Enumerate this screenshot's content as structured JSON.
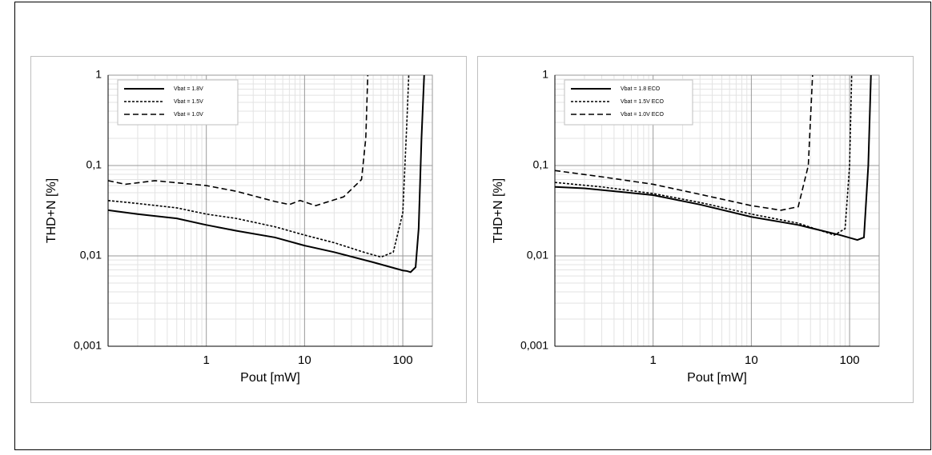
{
  "chart_data": [
    {
      "type": "line",
      "x_label": "Pout [mW]",
      "y_label": "THD+N [%]",
      "log_x": true,
      "log_y": true,
      "grid": true,
      "legend": "top-left",
      "xlim": [
        0.1,
        200
      ],
      "ylim": [
        0.001,
        1
      ],
      "xticks": [
        1,
        10,
        100
      ],
      "yticks": [
        {
          "value": 0.001,
          "label": "0,001"
        },
        {
          "value": 0.01,
          "label": "0,01"
        },
        {
          "value": 0.1,
          "label": "0,1"
        },
        1
      ],
      "series": [
        {
          "name": "Vbat = 1.8V",
          "color": "#000000",
          "dash": "solid",
          "x": [
            0.1,
            0.2,
            0.5,
            1,
            2,
            5,
            10,
            20,
            50,
            100,
            110,
            120,
            135,
            145,
            155,
            165
          ],
          "values": [
            0.032,
            0.029,
            0.026,
            0.022,
            0.019,
            0.016,
            0.013,
            0.011,
            0.0085,
            0.0069,
            0.0068,
            0.0066,
            0.0075,
            0.02,
            0.2,
            1
          ]
        },
        {
          "name": "Vbat = 1.5V",
          "color": "#000000",
          "dash": "dotted",
          "x": [
            0.1,
            0.2,
            0.5,
            1,
            2,
            5,
            10,
            20,
            40,
            60,
            80,
            100,
            110,
            115
          ],
          "values": [
            0.041,
            0.038,
            0.034,
            0.029,
            0.026,
            0.021,
            0.017,
            0.014,
            0.011,
            0.0097,
            0.011,
            0.03,
            0.3,
            1
          ]
        },
        {
          "name": "Vbat = 1.0V",
          "color": "#000000",
          "dash": "dashed",
          "x": [
            0.1,
            0.15,
            0.3,
            1,
            2,
            5,
            7,
            9,
            13,
            25,
            38,
            42,
            44
          ],
          "values": [
            0.068,
            0.062,
            0.068,
            0.06,
            0.052,
            0.04,
            0.037,
            0.041,
            0.036,
            0.045,
            0.07,
            0.2,
            1
          ]
        }
      ]
    },
    {
      "type": "line",
      "x_label": "Pout [mW]",
      "y_label": "THD+N [%]",
      "log_x": true,
      "log_y": true,
      "grid": true,
      "legend": "top-left",
      "xlim": [
        0.1,
        200
      ],
      "ylim": [
        0.001,
        1
      ],
      "xticks": [
        1,
        10,
        100
      ],
      "yticks": [
        {
          "value": 0.001,
          "label": "0,001"
        },
        {
          "value": 0.01,
          "label": "0,01"
        },
        {
          "value": 0.1,
          "label": "0,1"
        },
        1
      ],
      "series": [
        {
          "name": "Vbat = 1.8 ECO",
          "color": "#000000",
          "dash": "solid",
          "x": [
            0.1,
            0.2,
            1,
            3,
            10,
            30,
            80,
            120,
            140,
            155,
            165
          ],
          "values": [
            0.058,
            0.056,
            0.047,
            0.037,
            0.027,
            0.022,
            0.017,
            0.015,
            0.016,
            0.1,
            1
          ]
        },
        {
          "name": "Vbat = 1.5V ECO",
          "color": "#000000",
          "dash": "dotted",
          "x": [
            0.1,
            0.3,
            1,
            3,
            10,
            30,
            70,
            90,
            100,
            105
          ],
          "values": [
            0.065,
            0.058,
            0.049,
            0.039,
            0.029,
            0.023,
            0.017,
            0.02,
            0.1,
            1
          ]
        },
        {
          "name": "Vbat = 1.0V ECO",
          "color": "#000000",
          "dash": "dashed",
          "x": [
            0.1,
            0.3,
            1,
            3,
            10,
            20,
            30,
            38,
            42
          ],
          "values": [
            0.088,
            0.075,
            0.062,
            0.048,
            0.036,
            0.032,
            0.035,
            0.1,
            1
          ]
        }
      ]
    }
  ]
}
